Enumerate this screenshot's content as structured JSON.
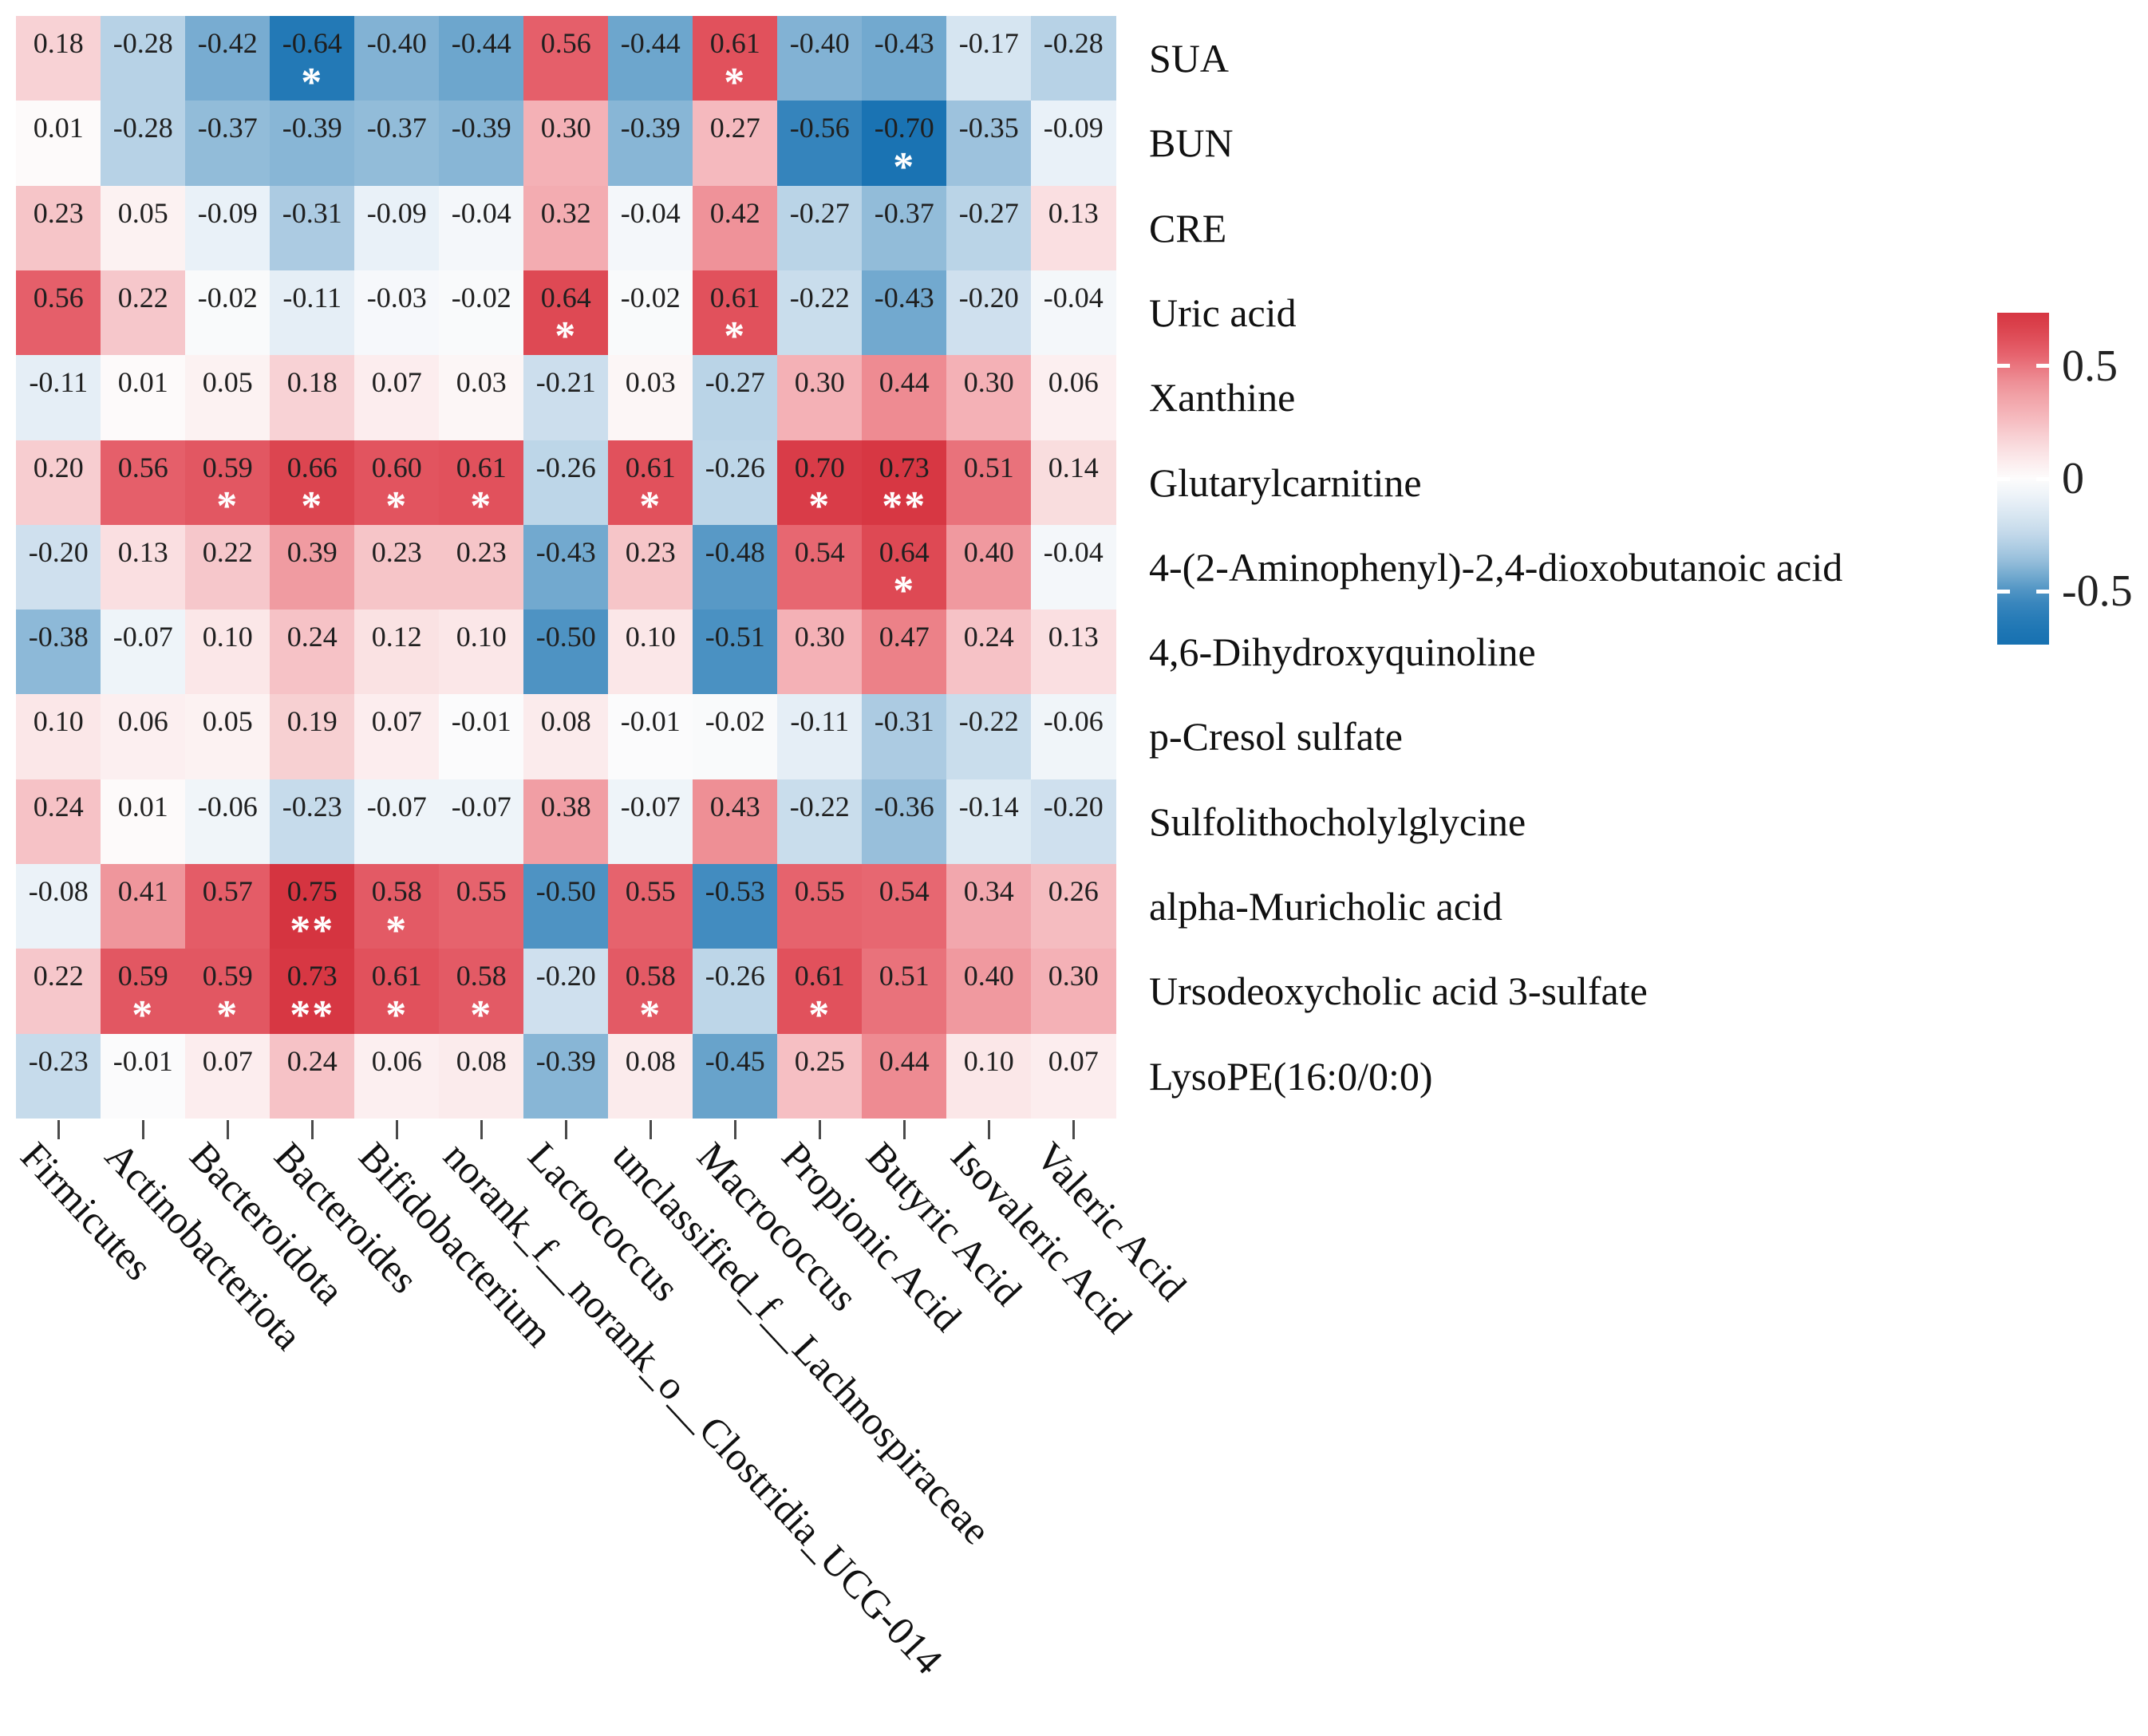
{
  "chart_data": {
    "type": "heatmap",
    "title": "",
    "xlabel": "",
    "ylabel": "",
    "grid": false,
    "legend_position": "right",
    "columns": [
      "Firmicutes",
      "Actinobacteriota",
      "Bacteroidota",
      "Bacteroides",
      "Bifidobacterium",
      "norank_f__norank_o__Clostridia_UCG-014",
      "Lactococcus",
      "unclassified_f__Lachnospiraceae",
      "Macrococcus",
      "Propionic Acid",
      "Butyric Acid",
      "Isovaleric Acid",
      "Valeric Acid"
    ],
    "rows": [
      "SUA",
      "BUN",
      "CRE",
      "Uric acid",
      "Xanthine",
      "Glutarylcarnitine",
      "4-(2-Aminophenyl)-2,4-dioxobutanoic acid",
      "4,6-Dihydroxyquinoline",
      "p-Cresol sulfate",
      "Sulfolithocholylglycine",
      "alpha-Muricholic acid",
      "Ursodeoxycholic acid 3-sulfate",
      "LysoPE(16:0/0:0)"
    ],
    "values": [
      [
        0.18,
        -0.28,
        -0.42,
        -0.64,
        -0.4,
        -0.44,
        0.56,
        -0.44,
        0.61,
        -0.4,
        -0.43,
        -0.17,
        -0.28
      ],
      [
        0.01,
        -0.28,
        -0.37,
        -0.39,
        -0.37,
        -0.39,
        0.3,
        -0.39,
        0.27,
        -0.56,
        -0.7,
        -0.35,
        -0.09
      ],
      [
        0.23,
        0.05,
        -0.09,
        -0.31,
        -0.09,
        -0.04,
        0.32,
        -0.04,
        0.42,
        -0.27,
        -0.37,
        -0.27,
        0.13
      ],
      [
        0.56,
        0.22,
        -0.02,
        -0.11,
        -0.03,
        -0.02,
        0.64,
        -0.02,
        0.61,
        -0.22,
        -0.43,
        -0.2,
        -0.04
      ],
      [
        -0.11,
        0.01,
        0.05,
        0.18,
        0.07,
        0.03,
        -0.21,
        0.03,
        -0.27,
        0.3,
        0.44,
        0.3,
        0.06
      ],
      [
        0.2,
        0.56,
        0.59,
        0.66,
        0.6,
        0.61,
        -0.26,
        0.61,
        -0.26,
        0.7,
        0.73,
        0.51,
        0.14
      ],
      [
        -0.2,
        0.13,
        0.22,
        0.39,
        0.23,
        0.23,
        -0.43,
        0.23,
        -0.48,
        0.54,
        0.64,
        0.4,
        -0.04
      ],
      [
        -0.38,
        -0.07,
        0.1,
        0.24,
        0.12,
        0.1,
        -0.5,
        0.1,
        -0.51,
        0.3,
        0.47,
        0.24,
        0.13
      ],
      [
        0.1,
        0.06,
        0.05,
        0.19,
        0.07,
        -0.01,
        0.08,
        -0.01,
        -0.02,
        -0.11,
        -0.31,
        -0.22,
        -0.06
      ],
      [
        0.24,
        0.01,
        -0.06,
        -0.23,
        -0.07,
        -0.07,
        0.38,
        -0.07,
        0.43,
        -0.22,
        -0.36,
        -0.14,
        -0.2
      ],
      [
        -0.08,
        0.41,
        0.57,
        0.75,
        0.58,
        0.55,
        -0.5,
        0.55,
        -0.53,
        0.55,
        0.54,
        0.34,
        0.26
      ],
      [
        0.22,
        0.59,
        0.59,
        0.73,
        0.61,
        0.58,
        -0.2,
        0.58,
        -0.26,
        0.61,
        0.51,
        0.4,
        0.3
      ],
      [
        -0.23,
        -0.01,
        0.07,
        0.24,
        0.06,
        0.08,
        -0.39,
        0.08,
        -0.45,
        0.25,
        0.44,
        0.1,
        0.07
      ]
    ],
    "significance": [
      [
        "",
        "",
        "",
        "*",
        "",
        "",
        "",
        "",
        "*",
        "",
        "",
        "",
        ""
      ],
      [
        "",
        "",
        "",
        "",
        "",
        "",
        "",
        "",
        "",
        "",
        "*",
        "",
        ""
      ],
      [
        "",
        "",
        "",
        "",
        "",
        "",
        "",
        "",
        "",
        "",
        "",
        "",
        ""
      ],
      [
        "",
        "",
        "",
        "",
        "",
        "",
        "*",
        "",
        "*",
        "",
        "",
        "",
        ""
      ],
      [
        "",
        "",
        "",
        "",
        "",
        "",
        "",
        "",
        "",
        "",
        "",
        "",
        ""
      ],
      [
        "",
        "",
        "*",
        "*",
        "*",
        "*",
        "",
        "*",
        "",
        "*",
        "**",
        "",
        ""
      ],
      [
        "",
        "",
        "",
        "",
        "",
        "",
        "",
        "",
        "",
        "",
        "*",
        "",
        ""
      ],
      [
        "",
        "",
        "",
        "",
        "",
        "",
        "",
        "",
        "",
        "",
        "",
        "",
        ""
      ],
      [
        "",
        "",
        "",
        "",
        "",
        "",
        "",
        "",
        "",
        "",
        "",
        "",
        ""
      ],
      [
        "",
        "",
        "",
        "",
        "",
        "",
        "",
        "",
        "",
        "",
        "",
        "",
        ""
      ],
      [
        "",
        "",
        "",
        "**",
        "*",
        "",
        "",
        "",
        "",
        "",
        "",
        "",
        ""
      ],
      [
        "",
        "*",
        "*",
        "**",
        "*",
        "*",
        "",
        "*",
        "",
        "*",
        "",
        "",
        ""
      ],
      [
        "",
        "",
        "",
        "",
        "",
        "",
        "",
        "",
        "",
        "",
        "",
        "",
        ""
      ]
    ],
    "value_format": "2dp",
    "colorscale": {
      "domain": [
        -0.75,
        0.75
      ],
      "negative_color": "#1a73b3",
      "zero_color": "#fdfcfc",
      "positive_color": "#d53440",
      "stops": [
        [
          -0.75,
          "#1570b0"
        ],
        [
          -0.7,
          "#1a73b3"
        ],
        [
          -0.64,
          "#2379b6"
        ],
        [
          -0.56,
          "#3584bc"
        ],
        [
          -0.5,
          "#4e93c3"
        ],
        [
          -0.44,
          "#6da6cd"
        ],
        [
          -0.35,
          "#9dc2dd"
        ],
        [
          -0.28,
          "#b7d2e6"
        ],
        [
          -0.2,
          "#cfe0ee"
        ],
        [
          -0.1,
          "#e7f0f7"
        ],
        [
          0.0,
          "#fdfcfc"
        ],
        [
          0.1,
          "#fbe7e8"
        ],
        [
          0.2,
          "#f7cdd0"
        ],
        [
          0.3,
          "#f4b1b6"
        ],
        [
          0.4,
          "#f0999f"
        ],
        [
          0.48,
          "#eb7d85"
        ],
        [
          0.56,
          "#e55f6a"
        ],
        [
          0.64,
          "#de4954"
        ],
        [
          0.7,
          "#d93c48"
        ],
        [
          0.75,
          "#d53440"
        ]
      ]
    },
    "colorbar": {
      "top_value": 0.735,
      "bottom_value": -0.735,
      "ticks": [
        {
          "value": 0.5,
          "label": "0.5"
        },
        {
          "value": 0.0,
          "label": "0"
        },
        {
          "value": -0.5,
          "label": "-0.5"
        }
      ]
    }
  },
  "layout_colors": {
    "background": "#ffffff",
    "cell_text": "#1f1f1f",
    "label_text": "#111111",
    "tick_mark": "#4a4a4a",
    "significance_marker": "#ffffff"
  }
}
